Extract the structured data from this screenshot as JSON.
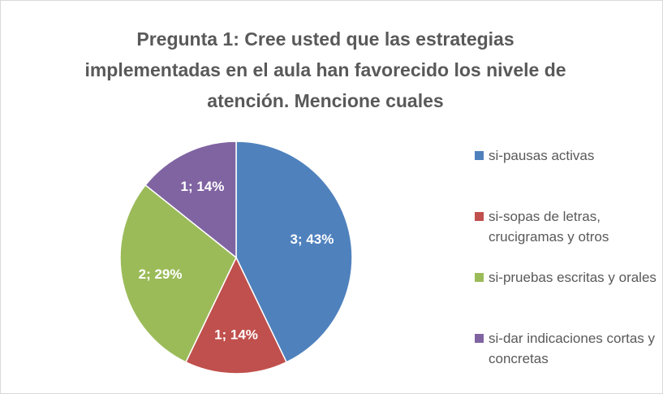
{
  "chart_data": {
    "type": "pie",
    "title": "Pregunta 1: Cree usted que las estrategias implementadas en el aula han favorecido los nivele de atención. Mencione cuales",
    "categories": [
      "si-pausas activas",
      "si-sopas de letras, crucigramas y otros",
      "si-pruebas escritas y orales",
      "si-dar indicaciones cortas y concretas"
    ],
    "values": [
      3,
      1,
      2,
      1
    ],
    "value_labels": [
      "3; 43%",
      "1; 14%",
      "2; 29%",
      "1; 14%"
    ],
    "colors": [
      "#4f81bd",
      "#c0504d",
      "#9bbb59",
      "#8064a2"
    ],
    "legend": "right"
  }
}
